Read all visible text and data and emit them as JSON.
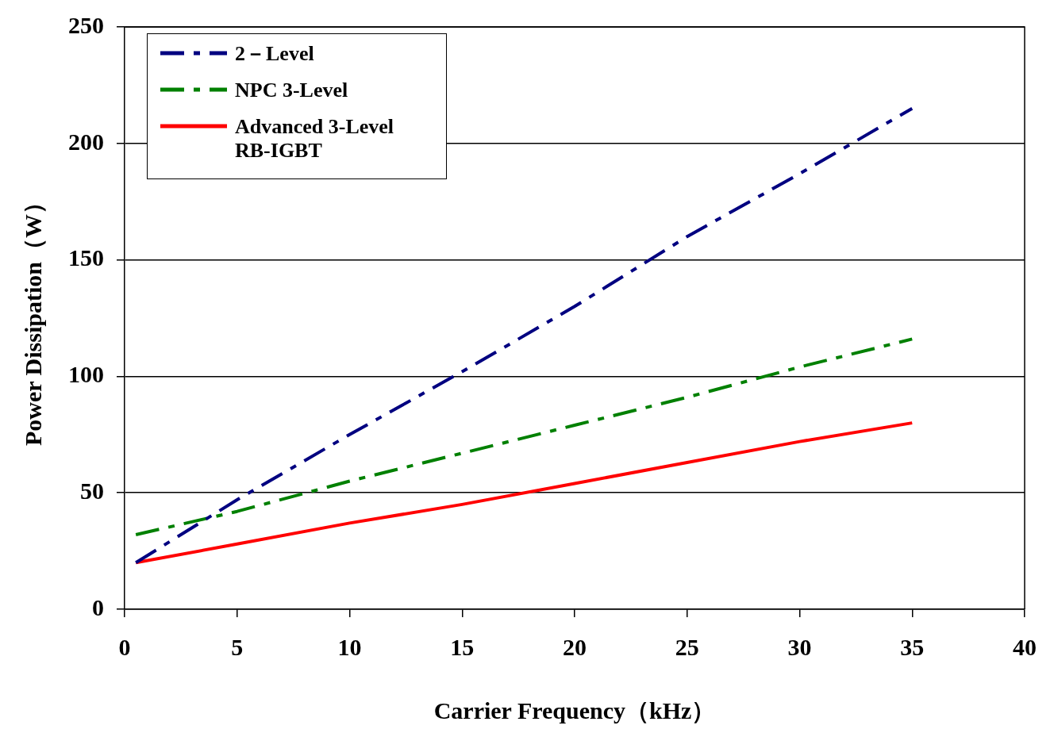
{
  "chart_data": {
    "type": "line",
    "xlabel": "Carrier Frequency（kHz）",
    "ylabel": "Power Dissipation（W）",
    "xlim": [
      0,
      40
    ],
    "xticks": [
      0,
      5,
      10,
      15,
      20,
      25,
      30,
      35,
      40
    ],
    "ylim": [
      0,
      250
    ],
    "yticks": [
      0,
      50,
      100,
      150,
      200,
      250
    ],
    "grid": "y",
    "legend": "top left",
    "marker": "none",
    "series": [
      {
        "name": "2－Level",
        "color": "#000080",
        "line_style": "dashdot",
        "x": [
          0.5,
          5,
          10,
          15,
          20,
          25,
          30,
          35
        ],
        "values": [
          20,
          47,
          75,
          102,
          130,
          160,
          187,
          215
        ]
      },
      {
        "name": "NPC 3-Level",
        "color": "#008000",
        "line_style": "dashdot",
        "x": [
          0.5,
          5,
          10,
          15,
          20,
          25,
          30,
          35
        ],
        "values": [
          32,
          42,
          55,
          67,
          79,
          91,
          104,
          116
        ]
      },
      {
        "name": "Advanced 3-Level RB-IGBT",
        "color": "#ff0000",
        "line_style": "solid",
        "x": [
          0.5,
          5,
          10,
          15,
          20,
          25,
          30,
          35
        ],
        "values": [
          20,
          28,
          37,
          45,
          54,
          63,
          72,
          80
        ]
      }
    ]
  }
}
